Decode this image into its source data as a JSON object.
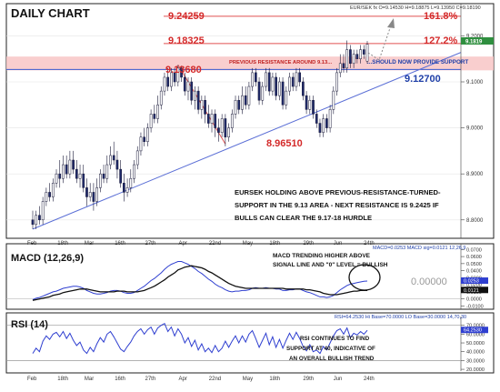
{
  "chart_data": [
    {
      "type": "candlestick",
      "title": "DAILY CHART",
      "header": "EUR/SEK fx O=9.14530 H=9.18875 L=9.13950 C=9.18190",
      "ylim": [
        8.76,
        9.27
      ],
      "yticks": [
        "9.2000",
        "9.1000",
        "9.0000",
        "8.9000",
        "8.8000"
      ],
      "ytick_values": [
        9.2,
        9.1,
        9.0,
        8.9,
        8.8
      ],
      "last_price": "9.1819",
      "last_value": 9.1819,
      "xlabels": [
        "Feb",
        "18th",
        "Mar",
        "16th",
        "27th",
        "Apr",
        "22nd",
        "May",
        "18th",
        "29th",
        "Jun",
        "24th"
      ],
      "levels": [
        {
          "label": "9.24259",
          "value": 9.24259,
          "tag": "161.8%"
        },
        {
          "label": "9.18325",
          "value": 9.18325,
          "tag": "127.2%"
        },
        {
          "label": "9.13680",
          "value": 9.1368,
          "tag": ""
        }
      ],
      "resistance_zone": {
        "label": "PREVIOUS RESISTANCE AROUND 9.13...",
        "low": 9.125,
        "high": 9.155
      },
      "support_label": "...SHOULD NOW PROVIDE SUPPORT",
      "support_level": {
        "label": "9.12700",
        "value": 9.127
      },
      "swing_low": {
        "label": "8.96510",
        "value": 8.9651
      },
      "annotation": "EURSEK HOLDING ABOVE PREVIOUS-RESISTANCE-TURNED-SUPPORT IN THE 9.13 AREA - NEXT RESISTANCE IS 9.2425 IF BULLS CAN CLEAR THE 9.17-18 HURDLE",
      "annotation_lines": [
        "EURSEK HOLDING ABOVE PREVIOUS-RESISTANCE-TURNED-",
        "SUPPORT IN THE 9.13 AREA - NEXT RESISTANCE IS 9.2425 IF",
        "BULLS CAN CLEAR THE 9.17-18 HURDLE"
      ],
      "trendline": {
        "from": {
          "bar": 0,
          "value": 8.78
        },
        "to": {
          "bar": 99,
          "value": 9.08
        }
      },
      "ohlc": [
        [
          8.8,
          8.79,
          8.82,
          8.78
        ],
        [
          8.79,
          8.81,
          8.82,
          8.78
        ],
        [
          8.81,
          8.8,
          8.83,
          8.79
        ],
        [
          8.8,
          8.84,
          8.85,
          8.79
        ],
        [
          8.84,
          8.86,
          8.87,
          8.83
        ],
        [
          8.86,
          8.85,
          8.88,
          8.84
        ],
        [
          8.85,
          8.88,
          8.89,
          8.84
        ],
        [
          8.88,
          8.9,
          8.91,
          8.87
        ],
        [
          8.9,
          8.89,
          8.93,
          8.87
        ],
        [
          8.89,
          8.92,
          8.94,
          8.88
        ],
        [
          8.92,
          8.9,
          8.94,
          8.89
        ],
        [
          8.9,
          8.93,
          8.95,
          8.89
        ],
        [
          8.93,
          8.91,
          8.95,
          8.9
        ],
        [
          8.91,
          8.89,
          8.93,
          8.88
        ],
        [
          8.89,
          8.9,
          8.92,
          8.87
        ],
        [
          8.9,
          8.87,
          8.92,
          8.86
        ],
        [
          8.87,
          8.85,
          8.89,
          8.83
        ],
        [
          8.85,
          8.86,
          8.88,
          8.84
        ],
        [
          8.86,
          8.84,
          8.88,
          8.82
        ],
        [
          8.84,
          8.87,
          8.89,
          8.83
        ],
        [
          8.87,
          8.9,
          8.91,
          8.86
        ],
        [
          8.9,
          8.89,
          8.92,
          8.88
        ],
        [
          8.89,
          8.92,
          8.94,
          8.88
        ],
        [
          8.92,
          8.94,
          8.96,
          8.91
        ],
        [
          8.94,
          8.93,
          8.97,
          8.92
        ],
        [
          8.93,
          8.91,
          8.95,
          8.89
        ],
        [
          8.91,
          8.88,
          8.93,
          8.87
        ],
        [
          8.88,
          8.86,
          8.9,
          8.84
        ],
        [
          8.86,
          8.87,
          8.89,
          8.85
        ],
        [
          8.87,
          8.89,
          8.91,
          8.86
        ],
        [
          8.89,
          8.92,
          8.93,
          8.88
        ],
        [
          8.92,
          8.95,
          8.96,
          8.91
        ],
        [
          8.95,
          8.98,
          8.99,
          8.94
        ],
        [
          8.98,
          8.97,
          9.0,
          8.96
        ],
        [
          8.97,
          9.0,
          9.01,
          8.96
        ],
        [
          9.0,
          9.03,
          9.04,
          8.99
        ],
        [
          9.03,
          9.02,
          9.05,
          9.01
        ],
        [
          9.02,
          9.05,
          9.07,
          9.01
        ],
        [
          9.05,
          9.08,
          9.09,
          9.04
        ],
        [
          9.08,
          9.11,
          9.12,
          9.07
        ],
        [
          9.11,
          9.09,
          9.13,
          9.08
        ],
        [
          9.09,
          9.12,
          9.13,
          9.08
        ],
        [
          9.12,
          9.1,
          9.13,
          9.09
        ],
        [
          9.1,
          9.13,
          9.1368,
          9.09
        ],
        [
          9.13,
          9.11,
          9.135,
          9.1
        ],
        [
          9.11,
          9.08,
          9.12,
          9.07
        ],
        [
          9.08,
          9.1,
          9.11,
          9.06
        ],
        [
          9.1,
          9.06,
          9.11,
          9.05
        ],
        [
          9.06,
          9.08,
          9.09,
          9.04
        ],
        [
          9.08,
          9.04,
          9.09,
          9.03
        ],
        [
          9.04,
          9.06,
          9.07,
          9.02
        ],
        [
          9.06,
          9.03,
          9.07,
          9.01
        ],
        [
          9.03,
          9.01,
          9.05,
          9.0
        ],
        [
          9.01,
          9.03,
          9.04,
          8.99
        ],
        [
          9.03,
          9.0,
          9.04,
          8.98
        ],
        [
          9.0,
          8.99,
          9.02,
          8.97
        ],
        [
          8.99,
          9.02,
          9.03,
          8.98
        ],
        [
          9.02,
          8.98,
          9.03,
          8.96
        ],
        [
          8.98,
          9.0,
          9.01,
          8.97
        ],
        [
          9.0,
          9.03,
          9.04,
          8.99
        ],
        [
          9.03,
          9.06,
          9.07,
          9.02
        ],
        [
          9.06,
          9.04,
          9.07,
          9.03
        ],
        [
          9.04,
          9.07,
          9.09,
          9.03
        ],
        [
          9.07,
          9.05,
          9.09,
          9.04
        ],
        [
          9.05,
          9.09,
          9.1,
          9.04
        ],
        [
          9.09,
          9.12,
          9.13,
          9.08
        ],
        [
          9.12,
          9.1,
          9.13,
          9.09
        ],
        [
          9.1,
          9.06,
          9.11,
          9.05
        ],
        [
          9.06,
          9.09,
          9.1,
          9.05
        ],
        [
          9.09,
          9.12,
          9.13,
          9.08
        ],
        [
          9.12,
          9.08,
          9.13,
          9.07
        ],
        [
          9.08,
          9.11,
          9.12,
          9.07
        ],
        [
          9.11,
          9.07,
          9.12,
          9.06
        ],
        [
          9.07,
          9.1,
          9.11,
          9.06
        ],
        [
          9.1,
          9.05,
          9.11,
          9.04
        ],
        [
          9.05,
          9.08,
          9.09,
          9.04
        ],
        [
          9.08,
          9.11,
          9.12,
          9.07
        ],
        [
          9.11,
          9.09,
          9.12,
          9.08
        ],
        [
          9.09,
          9.12,
          9.13,
          9.08
        ],
        [
          9.12,
          9.1,
          9.13,
          9.09
        ],
        [
          9.1,
          9.07,
          9.11,
          9.06
        ],
        [
          9.07,
          9.04,
          9.08,
          9.03
        ],
        [
          9.04,
          9.06,
          9.07,
          9.03
        ],
        [
          9.06,
          9.03,
          9.07,
          9.02
        ],
        [
          9.03,
          9.01,
          9.04,
          9.0
        ],
        [
          9.01,
          8.99,
          9.02,
          8.98
        ],
        [
          8.99,
          9.02,
          9.03,
          8.98
        ],
        [
          9.02,
          9.0,
          9.03,
          8.99
        ],
        [
          9.0,
          9.04,
          9.05,
          8.99
        ],
        [
          9.04,
          9.08,
          9.09,
          9.03
        ],
        [
          9.08,
          9.12,
          9.13,
          9.07
        ],
        [
          9.12,
          9.14,
          9.16,
          9.11
        ],
        [
          9.14,
          9.13,
          9.16,
          9.12
        ],
        [
          9.13,
          9.17,
          9.19,
          9.12
        ],
        [
          9.17,
          9.14,
          9.18,
          9.13
        ],
        [
          9.14,
          9.16,
          9.17,
          9.13
        ],
        [
          9.16,
          9.15,
          9.17,
          9.14
        ],
        [
          9.15,
          9.17,
          9.18,
          9.14
        ],
        [
          9.17,
          9.16,
          9.18,
          9.15
        ],
        [
          9.145,
          9.1819,
          9.18875,
          9.1395
        ]
      ]
    },
    {
      "type": "line",
      "title": "MACD (12,26,9)",
      "header": "MACD=0.0253 MACD sig=0.0121 12,26,9",
      "ylim": [
        -0.012,
        0.073
      ],
      "yticks": [
        "0.0700",
        "0.0600",
        "0.0500",
        "0.0400",
        "0.0300",
        "0.0200",
        "0.0100",
        "0.0000",
        "-0.0100"
      ],
      "ytick_values": [
        0.07,
        0.06,
        0.05,
        0.04,
        0.03,
        0.02,
        0.01,
        0.0,
        -0.01
      ],
      "tags": [
        {
          "label": "0.0253",
          "value": 0.0253
        },
        {
          "label": "0.0121",
          "value": 0.0121
        }
      ],
      "zero_label": "0.00000",
      "annotation_lines": [
        "MACD TRENDING HIGHER ABOVE",
        "SIGNAL LINE AND \"0\" LEVEL = BULLISH"
      ],
      "series": [
        {
          "name": "MACD",
          "values": [
            -0.001,
            0.001,
            0.002,
            0.004,
            0.006,
            0.008,
            0.01,
            0.011,
            0.013,
            0.015,
            0.016,
            0.017,
            0.018,
            0.018,
            0.017,
            0.015,
            0.012,
            0.01,
            0.008,
            0.007,
            0.007,
            0.008,
            0.009,
            0.011,
            0.012,
            0.012,
            0.011,
            0.009,
            0.008,
            0.008,
            0.009,
            0.012,
            0.015,
            0.018,
            0.022,
            0.026,
            0.029,
            0.033,
            0.037,
            0.042,
            0.046,
            0.049,
            0.051,
            0.053,
            0.053,
            0.051,
            0.049,
            0.046,
            0.043,
            0.039,
            0.036,
            0.032,
            0.028,
            0.025,
            0.021,
            0.018,
            0.016,
            0.013,
            0.011,
            0.01,
            0.011,
            0.011,
            0.012,
            0.012,
            0.013,
            0.015,
            0.016,
            0.015,
            0.015,
            0.016,
            0.015,
            0.015,
            0.014,
            0.014,
            0.012,
            0.012,
            0.013,
            0.013,
            0.014,
            0.014,
            0.012,
            0.01,
            0.009,
            0.007,
            0.005,
            0.003,
            0.003,
            0.002,
            0.003,
            0.005,
            0.009,
            0.013,
            0.016,
            0.019,
            0.021,
            0.022,
            0.023,
            0.024,
            0.025,
            0.0253
          ]
        },
        {
          "name": "Signal",
          "values": [
            -0.002,
            -0.001,
            0.0,
            0.001,
            0.002,
            0.003,
            0.005,
            0.006,
            0.007,
            0.009,
            0.01,
            0.011,
            0.012,
            0.013,
            0.014,
            0.014,
            0.014,
            0.013,
            0.012,
            0.011,
            0.01,
            0.01,
            0.01,
            0.01,
            0.01,
            0.011,
            0.011,
            0.011,
            0.01,
            0.01,
            0.01,
            0.01,
            0.011,
            0.012,
            0.014,
            0.016,
            0.018,
            0.021,
            0.024,
            0.027,
            0.031,
            0.034,
            0.037,
            0.041,
            0.043,
            0.045,
            0.046,
            0.047,
            0.046,
            0.045,
            0.044,
            0.042,
            0.039,
            0.037,
            0.034,
            0.031,
            0.028,
            0.025,
            0.022,
            0.02,
            0.018,
            0.017,
            0.016,
            0.015,
            0.015,
            0.015,
            0.015,
            0.015,
            0.015,
            0.015,
            0.015,
            0.015,
            0.015,
            0.015,
            0.015,
            0.014,
            0.014,
            0.014,
            0.014,
            0.014,
            0.014,
            0.013,
            0.013,
            0.012,
            0.011,
            0.01,
            0.008,
            0.007,
            0.006,
            0.006,
            0.006,
            0.007,
            0.008,
            0.009,
            0.01,
            0.011,
            0.011,
            0.012,
            0.012,
            0.0121
          ]
        }
      ]
    },
    {
      "type": "line",
      "title": "RSI (14)",
      "header": "RSI=64.2530 Hi Base=70.0000 LO Base=30.0000 14,70,30",
      "ylim": [
        18,
        80
      ],
      "yticks": [
        "70.0000",
        "60.0000",
        "50.0000",
        "40.0000",
        "30.0000",
        "20.0000"
      ],
      "ytick_values": [
        70,
        60,
        50,
        40,
        30,
        20
      ],
      "bases": [
        70,
        30
      ],
      "tag": {
        "label": "64.2530",
        "value": 64.253
      },
      "annotation_lines": [
        "RSI CONTINUES TO FIND",
        "SUPPORT AT 40, INDICATIVE OF",
        "AN OVERALL BULLISH TREND"
      ],
      "series": [
        {
          "name": "RSI",
          "values": [
            38,
            44,
            40,
            52,
            58,
            54,
            60,
            62,
            57,
            63,
            55,
            61,
            53,
            47,
            51,
            42,
            38,
            45,
            40,
            49,
            56,
            51,
            60,
            63,
            57,
            50,
            43,
            40,
            46,
            51,
            58,
            63,
            66,
            60,
            65,
            68,
            60,
            67,
            70,
            72,
            63,
            68,
            58,
            66,
            60,
            50,
            56,
            46,
            53,
            42,
            49,
            40,
            44,
            39,
            47,
            40,
            44,
            52,
            45,
            52,
            58,
            50,
            58,
            51,
            60,
            64,
            55,
            45,
            53,
            61,
            48,
            57,
            45,
            54,
            44,
            53,
            61,
            54,
            62,
            55,
            46,
            41,
            48,
            40,
            42,
            38,
            46,
            42,
            50,
            58,
            64,
            66,
            60,
            67,
            56,
            61,
            59,
            63,
            60,
            64.253
          ]
        }
      ]
    }
  ]
}
